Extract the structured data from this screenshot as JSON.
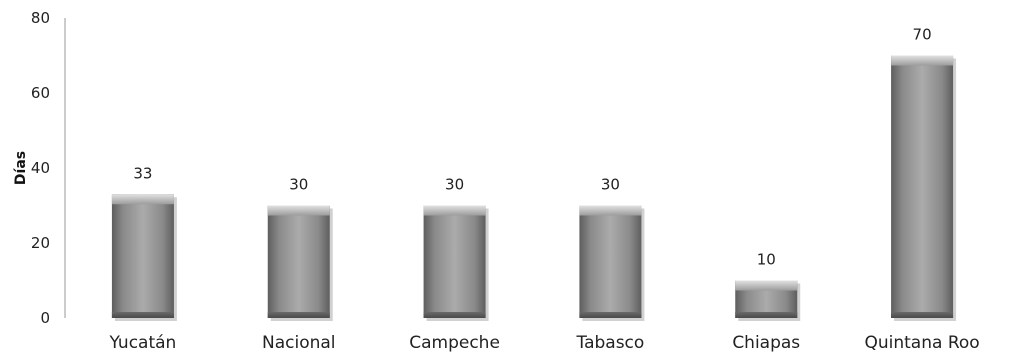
{
  "chart_data": {
    "type": "bar",
    "categories": [
      "Yucatán",
      "Nacional",
      "Campeche",
      "Tabasco",
      "Chiapas",
      "Quintana Roo"
    ],
    "values": [
      33,
      30,
      30,
      30,
      10,
      70
    ],
    "title": "",
    "xlabel": "",
    "ylabel": "Días",
    "ylim": [
      0,
      80
    ],
    "yticks": [
      0,
      20,
      40,
      60,
      80
    ],
    "grid": false,
    "legend": "none",
    "bar_color": "#9a9a9a"
  }
}
